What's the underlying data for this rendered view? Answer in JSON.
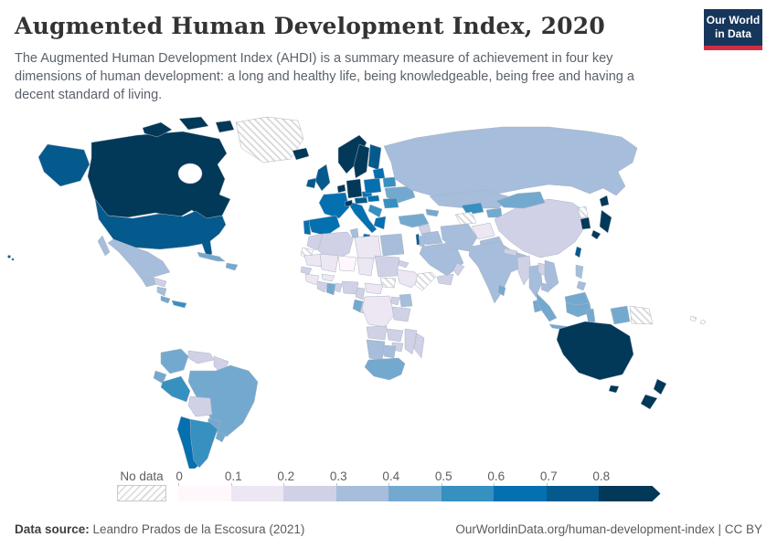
{
  "header": {
    "title": "Augmented Human Development Index, 2020",
    "subtitle": "The Augmented Human Development Index (AHDI) is a summary measure of achievement in four key dimensions of human development: a long and healthy life, being knowledgeable, being free and having a decent standard of living.",
    "logo_line1": "Our World",
    "logo_line2": "in Data"
  },
  "legend": {
    "no_data_label": "No data",
    "tick_labels": [
      "0",
      "0.1",
      "0.2",
      "0.3",
      "0.4",
      "0.5",
      "0.6",
      "0.7",
      "0.8"
    ],
    "bin_colors": [
      "#fff7fb",
      "#ece7f2",
      "#d0d1e6",
      "#a6bddb",
      "#74a9cf",
      "#3690c0",
      "#0570b0",
      "#045a8d",
      "#023858"
    ]
  },
  "footer": {
    "source_label": "Data source:",
    "source_value": " Leandro Prados de la Escosura (2021)",
    "link_text": "OurWorldinData.org/human-development-index",
    "separator": " | ",
    "license_text": "CC BY"
  },
  "chart_data": {
    "type": "choropleth",
    "title": "Augmented Human Development Index, 2020",
    "value_range": [
      0,
      0.8
    ],
    "bins": [
      "0–0.1",
      "0.1–0.2",
      "0.2–0.3",
      "0.3–0.4",
      "0.4–0.5",
      "0.5–0.6",
      "0.6–0.7",
      "0.7–0.8",
      "0.8+"
    ],
    "bin_colors": [
      "#fff7fb",
      "#ece7f2",
      "#d0d1e6",
      "#a6bddb",
      "#74a9cf",
      "#3690c0",
      "#0570b0",
      "#045a8d",
      "#023858"
    ],
    "no_data_color": "hatched",
    "regions": [
      {
        "id": "canada",
        "name": "Canada",
        "bin": "0.8+",
        "bin_index": 8
      },
      {
        "id": "united-states",
        "name": "United States",
        "bin": "0.7-0.8",
        "bin_index": 7
      },
      {
        "id": "greenland",
        "name": "Greenland",
        "bin": "No data",
        "bin_index": -1
      },
      {
        "id": "mexico",
        "name": "Mexico",
        "bin": "0.3-0.4",
        "bin_index": 3
      },
      {
        "id": "guatemala",
        "name": "Guatemala",
        "bin": "0.3-0.4",
        "bin_index": 3
      },
      {
        "id": "honduras",
        "name": "Honduras",
        "bin": "0.2-0.3",
        "bin_index": 2
      },
      {
        "id": "nicaragua",
        "name": "Nicaragua",
        "bin": "0.3-0.4",
        "bin_index": 3
      },
      {
        "id": "costa-rica",
        "name": "Costa Rica",
        "bin": "0.4-0.5",
        "bin_index": 4
      },
      {
        "id": "panama",
        "name": "Panama",
        "bin": "0.5-0.6",
        "bin_index": 5
      },
      {
        "id": "cuba",
        "name": "Cuba",
        "bin": "0.4-0.5",
        "bin_index": 4
      },
      {
        "id": "dominican-republic",
        "name": "Dominican Republic",
        "bin": "0.4-0.5",
        "bin_index": 4
      },
      {
        "id": "colombia",
        "name": "Colombia",
        "bin": "0.4-0.5",
        "bin_index": 4
      },
      {
        "id": "venezuela",
        "name": "Venezuela",
        "bin": "0.2-0.3",
        "bin_index": 2
      },
      {
        "id": "guyana",
        "name": "Guyanas",
        "bin": "0.2-0.3",
        "bin_index": 2
      },
      {
        "id": "ecuador",
        "name": "Ecuador",
        "bin": "0.4-0.5",
        "bin_index": 4
      },
      {
        "id": "peru",
        "name": "Peru",
        "bin": "0.5-0.6",
        "bin_index": 5
      },
      {
        "id": "brazil",
        "name": "Brazil",
        "bin": "0.4-0.5",
        "bin_index": 4
      },
      {
        "id": "bolivia",
        "name": "Bolivia",
        "bin": "0.2-0.3",
        "bin_index": 2
      },
      {
        "id": "paraguay",
        "name": "Paraguay",
        "bin": "0.4-0.5",
        "bin_index": 4
      },
      {
        "id": "chile",
        "name": "Chile",
        "bin": "0.6-0.7",
        "bin_index": 6
      },
      {
        "id": "argentina",
        "name": "Argentina",
        "bin": "0.5-0.6",
        "bin_index": 5
      },
      {
        "id": "uruguay",
        "name": "Uruguay",
        "bin": "0.4-0.5",
        "bin_index": 4
      },
      {
        "id": "iceland",
        "name": "Iceland",
        "bin": "0.8+",
        "bin_index": 8
      },
      {
        "id": "norway",
        "name": "Norway",
        "bin": "0.8+",
        "bin_index": 8
      },
      {
        "id": "sweden",
        "name": "Sweden",
        "bin": "0.8+",
        "bin_index": 8
      },
      {
        "id": "finland",
        "name": "Finland",
        "bin": "0.7-0.8",
        "bin_index": 7
      },
      {
        "id": "denmark",
        "name": "Denmark",
        "bin": "0.8+",
        "bin_index": 8
      },
      {
        "id": "united-kingdom",
        "name": "United Kingdom",
        "bin": "0.7-0.8",
        "bin_index": 7
      },
      {
        "id": "ireland",
        "name": "Ireland",
        "bin": "0.7-0.8",
        "bin_index": 7
      },
      {
        "id": "benelux",
        "name": "Netherlands/Belgium",
        "bin": "0.8+",
        "bin_index": 8
      },
      {
        "id": "germany",
        "name": "Germany",
        "bin": "0.8+",
        "bin_index": 8
      },
      {
        "id": "france",
        "name": "France",
        "bin": "0.6-0.7",
        "bin_index": 6
      },
      {
        "id": "switzerland",
        "name": "Switzerland",
        "bin": "0.8+",
        "bin_index": 8
      },
      {
        "id": "austria",
        "name": "Austria",
        "bin": "0.7-0.8",
        "bin_index": 7
      },
      {
        "id": "czechia",
        "name": "Czechia",
        "bin": "0.6-0.7",
        "bin_index": 6
      },
      {
        "id": "poland",
        "name": "Poland",
        "bin": "0.6-0.7",
        "bin_index": 6
      },
      {
        "id": "baltics",
        "name": "Baltic states",
        "bin": "0.6-0.7",
        "bin_index": 6
      },
      {
        "id": "belarus",
        "name": "Belarus",
        "bin": "0.5-0.6",
        "bin_index": 5
      },
      {
        "id": "ukraine",
        "name": "Ukraine",
        "bin": "0.4-0.5",
        "bin_index": 4
      },
      {
        "id": "romania",
        "name": "Romania",
        "bin": "0.5-0.6",
        "bin_index": 5
      },
      {
        "id": "balkans",
        "name": "Balkans",
        "bin": "0.5-0.6",
        "bin_index": 5
      },
      {
        "id": "greece",
        "name": "Greece",
        "bin": "0.6-0.7",
        "bin_index": 6
      },
      {
        "id": "hungary",
        "name": "Hungary",
        "bin": "0.6-0.7",
        "bin_index": 6
      },
      {
        "id": "italy",
        "name": "Italy",
        "bin": "0.6-0.7",
        "bin_index": 6
      },
      {
        "id": "spain",
        "name": "Spain",
        "bin": "0.6-0.7",
        "bin_index": 6
      },
      {
        "id": "portugal",
        "name": "Portugal",
        "bin": "0.6-0.7",
        "bin_index": 6
      },
      {
        "id": "russia",
        "name": "Russia",
        "bin": "0.3-0.4",
        "bin_index": 3
      },
      {
        "id": "turkey",
        "name": "Turkey",
        "bin": "0.4-0.5",
        "bin_index": 4
      },
      {
        "id": "caucasus",
        "name": "Caucasus",
        "bin": "0.4-0.5",
        "bin_index": 4
      },
      {
        "id": "syria",
        "name": "Syria",
        "bin": "0.2-0.3",
        "bin_index": 2
      },
      {
        "id": "iraq",
        "name": "Iraq",
        "bin": "0.3-0.4",
        "bin_index": 3
      },
      {
        "id": "israel",
        "name": "Israel",
        "bin": "0.7-0.8",
        "bin_index": 7
      },
      {
        "id": "jordan",
        "name": "Jordan",
        "bin": "0.3-0.4",
        "bin_index": 3
      },
      {
        "id": "saudi-arabia",
        "name": "Saudi Arabia",
        "bin": "0.3-0.4",
        "bin_index": 3
      },
      {
        "id": "yemen",
        "name": "Yemen",
        "bin": "0.2-0.3",
        "bin_index": 2
      },
      {
        "id": "oman",
        "name": "Oman",
        "bin": "0.2-0.3",
        "bin_index": 2
      },
      {
        "id": "iran",
        "name": "Iran",
        "bin": "0.3-0.4",
        "bin_index": 3
      },
      {
        "id": "turkmenistan",
        "name": "Turkmenistan",
        "bin": "No data",
        "bin_index": -1
      },
      {
        "id": "uzbekistan",
        "name": "Uzbekistan",
        "bin": "0.5-0.6",
        "bin_index": 5
      },
      {
        "id": "kazakhstan",
        "name": "Kazakhstan",
        "bin": "0.3-0.4",
        "bin_index": 3
      },
      {
        "id": "kyrgyzstan",
        "name": "Kyrgyzstan",
        "bin": "0.4-0.5",
        "bin_index": 4
      },
      {
        "id": "afghanistan",
        "name": "Afghanistan",
        "bin": "0.1-0.2",
        "bin_index": 1
      },
      {
        "id": "pakistan",
        "name": "Pakistan",
        "bin": "0.3-0.4",
        "bin_index": 3
      },
      {
        "id": "india",
        "name": "India",
        "bin": "0.3-0.4",
        "bin_index": 3
      },
      {
        "id": "nepal",
        "name": "Nepal",
        "bin": "0.2-0.3",
        "bin_index": 2
      },
      {
        "id": "bangladesh",
        "name": "Bangladesh",
        "bin": "0.3-0.4",
        "bin_index": 3
      },
      {
        "id": "sri-lanka",
        "name": "Sri Lanka",
        "bin": "0.4-0.5",
        "bin_index": 4
      },
      {
        "id": "china",
        "name": "China",
        "bin": "0.2-0.3",
        "bin_index": 2
      },
      {
        "id": "mongolia",
        "name": "Mongolia",
        "bin": "0.4-0.5",
        "bin_index": 4
      },
      {
        "id": "north-korea",
        "name": "North Korea",
        "bin": "No data",
        "bin_index": -1
      },
      {
        "id": "south-korea",
        "name": "South Korea",
        "bin": "0.8+",
        "bin_index": 8
      },
      {
        "id": "japan",
        "name": "Japan",
        "bin": "0.8+",
        "bin_index": 8
      },
      {
        "id": "taiwan",
        "name": "Taiwan",
        "bin": "0.7-0.8",
        "bin_index": 7
      },
      {
        "id": "myanmar",
        "name": "Myanmar",
        "bin": "0.2-0.3",
        "bin_index": 2
      },
      {
        "id": "thailand",
        "name": "Thailand",
        "bin": "0.3-0.4",
        "bin_index": 3
      },
      {
        "id": "laos",
        "name": "Laos",
        "bin": "0.2-0.3",
        "bin_index": 2
      },
      {
        "id": "vietnam",
        "name": "Vietnam",
        "bin": "0.3-0.4",
        "bin_index": 3
      },
      {
        "id": "cambodia",
        "name": "Cambodia",
        "bin": "0.3-0.4",
        "bin_index": 3
      },
      {
        "id": "malaysia",
        "name": "Malaysia",
        "bin": "0.4-0.5",
        "bin_index": 4
      },
      {
        "id": "indonesia",
        "name": "Indonesia",
        "bin": "0.4-0.5",
        "bin_index": 4
      },
      {
        "id": "philippines",
        "name": "Philippines",
        "bin": "0.3-0.4",
        "bin_index": 3
      },
      {
        "id": "papua-new-guinea",
        "name": "Papua New Guinea",
        "bin": "No data",
        "bin_index": -1
      },
      {
        "id": "pacific-islands",
        "name": "Pacific islands",
        "bin": "No data",
        "bin_index": -1
      },
      {
        "id": "morocco",
        "name": "Morocco",
        "bin": "0.2-0.3",
        "bin_index": 2
      },
      {
        "id": "western-sahara",
        "name": "Western Sahara",
        "bin": "No data",
        "bin_index": -1
      },
      {
        "id": "algeria",
        "name": "Algeria",
        "bin": "0.2-0.3",
        "bin_index": 2
      },
      {
        "id": "tunisia",
        "name": "Tunisia",
        "bin": "0.3-0.4",
        "bin_index": 3
      },
      {
        "id": "libya",
        "name": "Libya",
        "bin": "0.1-0.2",
        "bin_index": 1
      },
      {
        "id": "egypt",
        "name": "Egypt",
        "bin": "0.3-0.4",
        "bin_index": 3
      },
      {
        "id": "mauritania",
        "name": "Mauritania",
        "bin": "0.1-0.2",
        "bin_index": 1
      },
      {
        "id": "mali",
        "name": "Mali",
        "bin": "0.1-0.2",
        "bin_index": 1
      },
      {
        "id": "niger",
        "name": "Niger",
        "bin": "0-0.1",
        "bin_index": 0
      },
      {
        "id": "chad",
        "name": "Chad",
        "bin": "0.1-0.2",
        "bin_index": 1
      },
      {
        "id": "sudan",
        "name": "Sudan",
        "bin": "0.2-0.3",
        "bin_index": 2
      },
      {
        "id": "eritrea",
        "name": "Eritrea",
        "bin": "0.2-0.3",
        "bin_index": 2
      },
      {
        "id": "ethiopia",
        "name": "Ethiopia",
        "bin": "0.1-0.2",
        "bin_index": 1
      },
      {
        "id": "somalia",
        "name": "Somalia",
        "bin": "No data",
        "bin_index": -1
      },
      {
        "id": "south-sudan",
        "name": "South Sudan",
        "bin": "No data",
        "bin_index": -1
      },
      {
        "id": "senegal",
        "name": "Senegal",
        "bin": "0.2-0.3",
        "bin_index": 2
      },
      {
        "id": "guinea",
        "name": "Guinea",
        "bin": "0.1-0.2",
        "bin_index": 1
      },
      {
        "id": "ivory-coast",
        "name": "Ivory Coast",
        "bin": "0.2-0.3",
        "bin_index": 2
      },
      {
        "id": "ghana",
        "name": "Ghana",
        "bin": "0.4-0.5",
        "bin_index": 4
      },
      {
        "id": "togo-benin",
        "name": "Togo/Benin",
        "bin": "0.2-0.3",
        "bin_index": 2
      },
      {
        "id": "nigeria",
        "name": "Nigeria",
        "bin": "0.2-0.3",
        "bin_index": 2
      },
      {
        "id": "burkina-faso",
        "name": "Burkina Faso",
        "bin": "0.1-0.2",
        "bin_index": 1
      },
      {
        "id": "cameroon",
        "name": "Cameroon",
        "bin": "0.2-0.3",
        "bin_index": 2
      },
      {
        "id": "central-african-republic",
        "name": "Central African Republic",
        "bin": "0.1-0.2",
        "bin_index": 1
      },
      {
        "id": "dr-congo",
        "name": "Democratic Republic of Congo",
        "bin": "0.1-0.2",
        "bin_index": 1
      },
      {
        "id": "gabon",
        "name": "Gabon",
        "bin": "0.4-0.5",
        "bin_index": 4
      },
      {
        "id": "congo",
        "name": "Congo",
        "bin": "0.2-0.3",
        "bin_index": 2
      },
      {
        "id": "uganda",
        "name": "Uganda",
        "bin": "0.2-0.3",
        "bin_index": 2
      },
      {
        "id": "kenya",
        "name": "Kenya",
        "bin": "0.3-0.4",
        "bin_index": 3
      },
      {
        "id": "tanzania",
        "name": "Tanzania",
        "bin": "0.2-0.3",
        "bin_index": 2
      },
      {
        "id": "angola",
        "name": "Angola",
        "bin": "0.2-0.3",
        "bin_index": 2
      },
      {
        "id": "zambia",
        "name": "Zambia",
        "bin": "0.2-0.3",
        "bin_index": 2
      },
      {
        "id": "mozambique",
        "name": "Mozambique",
        "bin": "0.2-0.3",
        "bin_index": 2
      },
      {
        "id": "zimbabwe",
        "name": "Zimbabwe",
        "bin": "0.2-0.3",
        "bin_index": 2
      },
      {
        "id": "namibia",
        "name": "Namibia",
        "bin": "0.3-0.4",
        "bin_index": 3
      },
      {
        "id": "botswana",
        "name": "Botswana",
        "bin": "0.3-0.4",
        "bin_index": 3
      },
      {
        "id": "south-africa",
        "name": "South Africa",
        "bin": "0.4-0.5",
        "bin_index": 4
      },
      {
        "id": "madagascar",
        "name": "Madagascar",
        "bin": "0.2-0.3",
        "bin_index": 2
      },
      {
        "id": "australia",
        "name": "Australia",
        "bin": "0.8+",
        "bin_index": 8
      },
      {
        "id": "new-zealand",
        "name": "New Zealand",
        "bin": "0.8+",
        "bin_index": 8
      }
    ]
  }
}
